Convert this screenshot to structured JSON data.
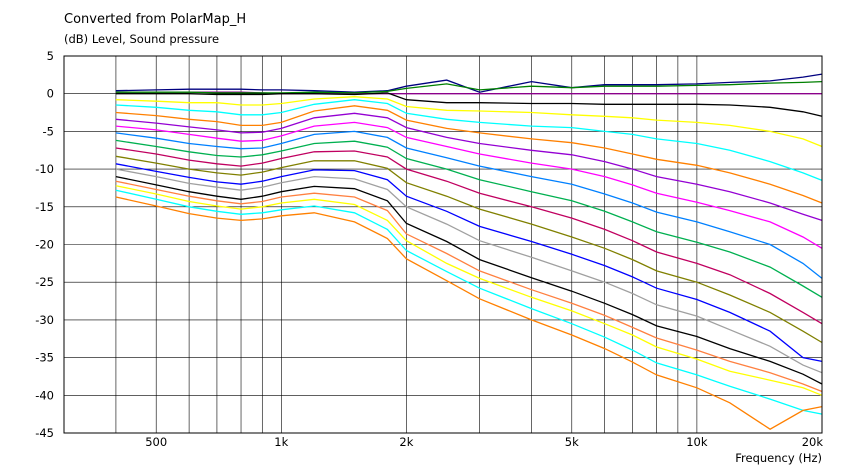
{
  "chart_data": {
    "type": "line",
    "title": "Converted from PolarMap_H",
    "ylabel": "(dB)  Level, Sound pressure",
    "xlabel": "Frequency  (Hz)",
    "x_scale": "log",
    "xlim": [
      300,
      20000
    ],
    "ylim": [
      -45,
      5
    ],
    "y_ticks": [
      5,
      0,
      -5,
      -10,
      -15,
      -20,
      -25,
      -30,
      -35,
      -40,
      -45
    ],
    "x_tick_labels": [
      {
        "value": 500,
        "label": "500"
      },
      {
        "value": 1000,
        "label": "1k"
      },
      {
        "value": 2000,
        "label": "2k"
      },
      {
        "value": 5000,
        "label": "5k"
      },
      {
        "value": 10000,
        "label": "10k"
      },
      {
        "value": 20000,
        "label": "20k"
      }
    ],
    "x_grid": [
      400,
      500,
      600,
      700,
      800,
      900,
      1000,
      2000,
      3000,
      4000,
      5000,
      6000,
      7000,
      8000,
      9000,
      10000,
      20000
    ],
    "grid": true,
    "x": [
      300,
      400,
      500,
      600,
      700,
      800,
      900,
      1000,
      1200,
      1500,
      1800,
      2000,
      2500,
      3000,
      4000,
      5000,
      6000,
      7000,
      8000,
      10000,
      12000,
      15000,
      18000,
      20000
    ],
    "series": [
      {
        "color": "#8b008b",
        "values": [
          null,
          0.2,
          0.2,
          0.2,
          0.2,
          0.2,
          0.1,
          0,
          0,
          0,
          0,
          0,
          0,
          0,
          0,
          0,
          0,
          0,
          0,
          0,
          0,
          0,
          0,
          0
        ]
      },
      {
        "color": "#000080",
        "values": [
          null,
          0.4,
          0.5,
          0.6,
          0.6,
          0.6,
          0.5,
          0.5,
          0.4,
          0.2,
          0.4,
          1.0,
          1.8,
          0.2,
          1.6,
          0.8,
          1.2,
          1.2,
          1.2,
          1.3,
          1.5,
          1.7,
          2.2,
          2.6
        ]
      },
      {
        "color": "#008000",
        "values": [
          null,
          0.2,
          0.2,
          0.2,
          0.1,
          0.1,
          0.1,
          0.1,
          0.2,
          0.1,
          0.3,
          0.7,
          1.3,
          0.5,
          1.0,
          0.8,
          1.0,
          1.0,
          1.0,
          1.1,
          1.2,
          1.4,
          1.5,
          1.6
        ]
      },
      {
        "color": "#000000",
        "values": [
          null,
          0.0,
          0.0,
          0.0,
          -0.1,
          -0.1,
          -0.1,
          0.0,
          0.0,
          -0.1,
          0.1,
          -0.8,
          -1.2,
          -1.2,
          -1.3,
          -1.3,
          -1.4,
          -1.4,
          -1.4,
          -1.4,
          -1.5,
          -1.8,
          -2.4,
          -3.0
        ]
      },
      {
        "color": "#ffff00",
        "values": [
          null,
          -0.8,
          -1.0,
          -1.2,
          -1.2,
          -1.5,
          -1.5,
          -1.3,
          -0.7,
          -0.4,
          -0.7,
          -1.7,
          -2.2,
          -2.3,
          -2.5,
          -2.8,
          -3.0,
          -3.2,
          -3.5,
          -3.8,
          -4.2,
          -5.0,
          -6.0,
          -7.0
        ]
      },
      {
        "color": "#00ffff",
        "values": [
          null,
          -1.5,
          -1.8,
          -2.2,
          -2.4,
          -2.8,
          -2.8,
          -2.5,
          -1.4,
          -0.8,
          -1.3,
          -2.6,
          -3.4,
          -3.8,
          -4.3,
          -4.5,
          -5.0,
          -5.4,
          -6.0,
          -6.6,
          -7.5,
          -9.0,
          -10.5,
          -11.5
        ]
      },
      {
        "color": "#ff8000",
        "values": [
          null,
          -2.5,
          -2.9,
          -3.4,
          -3.7,
          -4.2,
          -4.2,
          -3.8,
          -2.3,
          -1.6,
          -2.2,
          -3.5,
          -4.6,
          -5.2,
          -6.0,
          -6.5,
          -7.2,
          -8.0,
          -8.7,
          -9.5,
          -10.5,
          -12.0,
          -13.5,
          -14.5
        ]
      },
      {
        "color": "#9400d3",
        "values": [
          null,
          -3.4,
          -3.9,
          -4.4,
          -4.8,
          -5.2,
          -5.1,
          -4.6,
          -3.2,
          -2.6,
          -3.2,
          -4.5,
          -5.8,
          -6.6,
          -7.5,
          -8.1,
          -9.0,
          -10.0,
          -11.0,
          -12.0,
          -13.0,
          -14.5,
          -16.0,
          -16.8
        ]
      },
      {
        "color": "#ff00ff",
        "values": [
          null,
          -4.3,
          -4.8,
          -5.4,
          -5.9,
          -6.3,
          -6.2,
          -5.6,
          -4.3,
          -3.8,
          -4.5,
          -5.8,
          -7.0,
          -8.0,
          -9.2,
          -10.0,
          -11.0,
          -12.1,
          -13.2,
          -14.4,
          -15.5,
          -17.0,
          -19.0,
          -20.5
        ]
      },
      {
        "color": "#0080ff",
        "values": [
          null,
          -5.2,
          -5.9,
          -6.6,
          -7.0,
          -7.3,
          -7.2,
          -6.6,
          -5.4,
          -5.0,
          -5.8,
          -7.2,
          -8.5,
          -9.6,
          -11.0,
          -12.0,
          -13.3,
          -14.5,
          -15.7,
          -17.0,
          -18.3,
          -20.0,
          -22.5,
          -24.5
        ]
      },
      {
        "color": "#00b050",
        "values": [
          null,
          -6.2,
          -7.0,
          -7.7,
          -8.2,
          -8.4,
          -8.1,
          -7.6,
          -6.6,
          -6.3,
          -7.1,
          -8.6,
          -10.0,
          -11.4,
          -13.0,
          -14.2,
          -15.6,
          -17.0,
          -18.3,
          -19.7,
          -21.0,
          -23.0,
          -25.5,
          -27.0
        ]
      },
      {
        "color": "#c00060",
        "values": [
          null,
          -7.2,
          -8.0,
          -8.8,
          -9.3,
          -9.6,
          -9.2,
          -8.6,
          -7.7,
          -7.6,
          -8.4,
          -10.0,
          -11.6,
          -13.2,
          -15.0,
          -16.5,
          -18.0,
          -19.5,
          -21.0,
          -22.5,
          -24.0,
          -26.5,
          -29.0,
          -30.5
        ]
      },
      {
        "color": "#808000",
        "values": [
          null,
          -8.3,
          -9.2,
          -10.0,
          -10.5,
          -10.8,
          -10.4,
          -9.8,
          -8.9,
          -8.9,
          -9.9,
          -11.8,
          -13.6,
          -15.3,
          -17.3,
          -19.0,
          -20.5,
          -22.0,
          -23.5,
          -25.0,
          -26.7,
          -29.0,
          -31.5,
          -33.0
        ]
      },
      {
        "color": "#0000ff",
        "values": [
          null,
          -9.3,
          -10.3,
          -11.1,
          -11.7,
          -12.0,
          -11.6,
          -11.0,
          -10.1,
          -10.2,
          -11.4,
          -13.6,
          -15.6,
          -17.6,
          -19.6,
          -21.3,
          -22.8,
          -24.3,
          -25.8,
          -27.3,
          -29.0,
          -31.5,
          -35.0,
          -35.5
        ]
      },
      {
        "color": "#a0a0a0",
        "values": [
          null,
          -10.0,
          -11.0,
          -11.9,
          -12.4,
          -12.8,
          -12.4,
          -11.8,
          -11.0,
          -11.3,
          -12.7,
          -15.0,
          -17.3,
          -19.5,
          -21.7,
          -23.5,
          -25.0,
          -26.5,
          -28.0,
          -29.5,
          -31.3,
          -33.5,
          -36.0,
          -37.0
        ]
      },
      {
        "color": "#000000",
        "values": [
          null,
          -11.0,
          -12.1,
          -13.0,
          -13.6,
          -14.0,
          -13.6,
          -13.0,
          -12.3,
          -12.6,
          -14.2,
          -17.2,
          -19.6,
          -22.0,
          -24.4,
          -26.2,
          -27.8,
          -29.3,
          -30.8,
          -32.2,
          -33.8,
          -35.5,
          -37.2,
          -38.5
        ]
      },
      {
        "color": "#ff8040",
        "values": [
          null,
          -11.6,
          -12.7,
          -13.6,
          -14.2,
          -14.6,
          -14.3,
          -13.7,
          -13.2,
          -13.7,
          -15.5,
          -18.6,
          -21.2,
          -23.5,
          -26.0,
          -27.8,
          -29.4,
          -31.0,
          -32.4,
          -34.0,
          -35.5,
          -37.0,
          -38.5,
          -39.5
        ]
      },
      {
        "color": "#ffff00",
        "values": [
          null,
          -12.2,
          -13.3,
          -14.3,
          -14.9,
          -15.3,
          -15.0,
          -14.5,
          -14.0,
          -14.7,
          -16.8,
          -19.5,
          -22.5,
          -24.5,
          -27.0,
          -28.8,
          -30.5,
          -32.0,
          -33.6,
          -35.2,
          -36.8,
          -38.0,
          -39.0,
          -40.0
        ]
      },
      {
        "color": "#00ffff",
        "values": [
          null,
          -12.8,
          -14.0,
          -15.0,
          -15.6,
          -16.0,
          -15.8,
          -15.4,
          -14.9,
          -15.8,
          -18.0,
          -20.8,
          -23.6,
          -25.8,
          -28.5,
          -30.5,
          -32.3,
          -34.0,
          -35.7,
          -37.3,
          -38.8,
          -40.5,
          -42.0,
          -42.5
        ]
      },
      {
        "color": "#ff8000",
        "values": [
          null,
          -13.7,
          -14.9,
          -15.9,
          -16.5,
          -16.8,
          -16.6,
          -16.2,
          -15.8,
          -17.0,
          -19.2,
          -21.9,
          -24.8,
          -27.2,
          -30.0,
          -32.0,
          -33.8,
          -35.6,
          -37.3,
          -39.0,
          -41.0,
          -44.5,
          -42.0,
          -41.5
        ]
      }
    ]
  }
}
